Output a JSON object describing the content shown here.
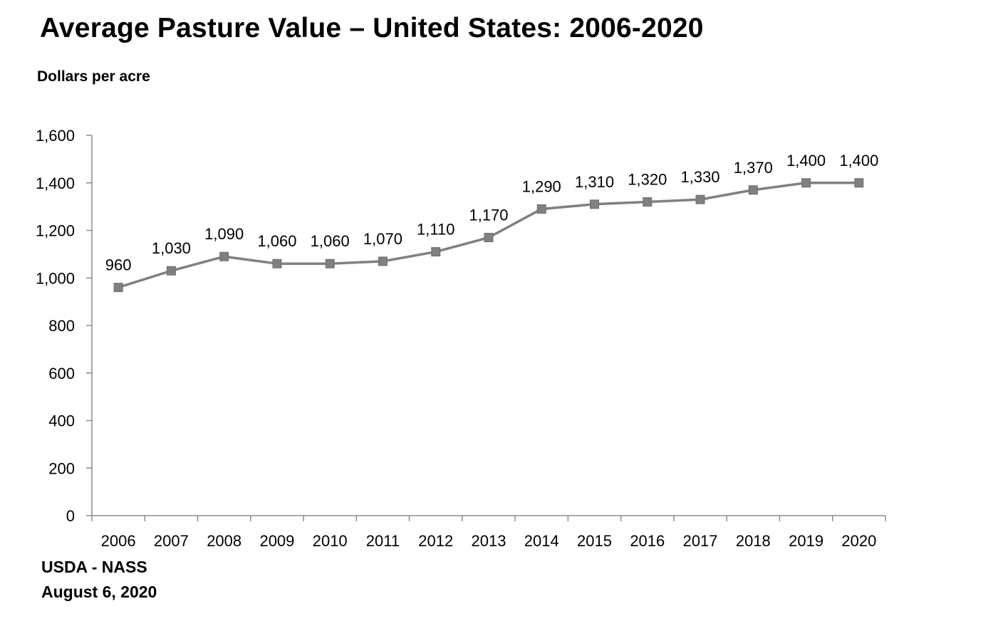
{
  "chart_data": {
    "type": "line",
    "title": "Average Pasture Value – United States: 2006-2020",
    "ylabel": "Dollars per acre",
    "xlabel": "",
    "categories": [
      "2006",
      "2007",
      "2008",
      "2009",
      "2010",
      "2011",
      "2012",
      "2013",
      "2014",
      "2015",
      "2016",
      "2017",
      "2018",
      "2019",
      "2020"
    ],
    "series": [
      {
        "values": [
          960,
          1030,
          1090,
          1060,
          1060,
          1070,
          1110,
          1170,
          1290,
          1310,
          1320,
          1330,
          1370,
          1400,
          1400
        ],
        "data_labels": [
          "960",
          "1,030",
          "1,090",
          "1,060",
          "1,060",
          "1,070",
          "1,110",
          "1,170",
          "1,290",
          "1,310",
          "1,320",
          "1,330",
          "1,370",
          "1,400",
          "1,400"
        ],
        "color": "#808080",
        "marker": "square"
      }
    ],
    "ylim": [
      0,
      1600
    ],
    "yticks": [
      0,
      200,
      400,
      600,
      800,
      1000,
      1200,
      1400,
      1600
    ],
    "ytick_labels": [
      "0",
      "200",
      "400",
      "600",
      "800",
      "1,000",
      "1,200",
      "1,400",
      "1,600"
    ],
    "grid": false,
    "legend": "none"
  },
  "footer": {
    "source": "USDA - NASS",
    "date": "August 6, 2020"
  }
}
